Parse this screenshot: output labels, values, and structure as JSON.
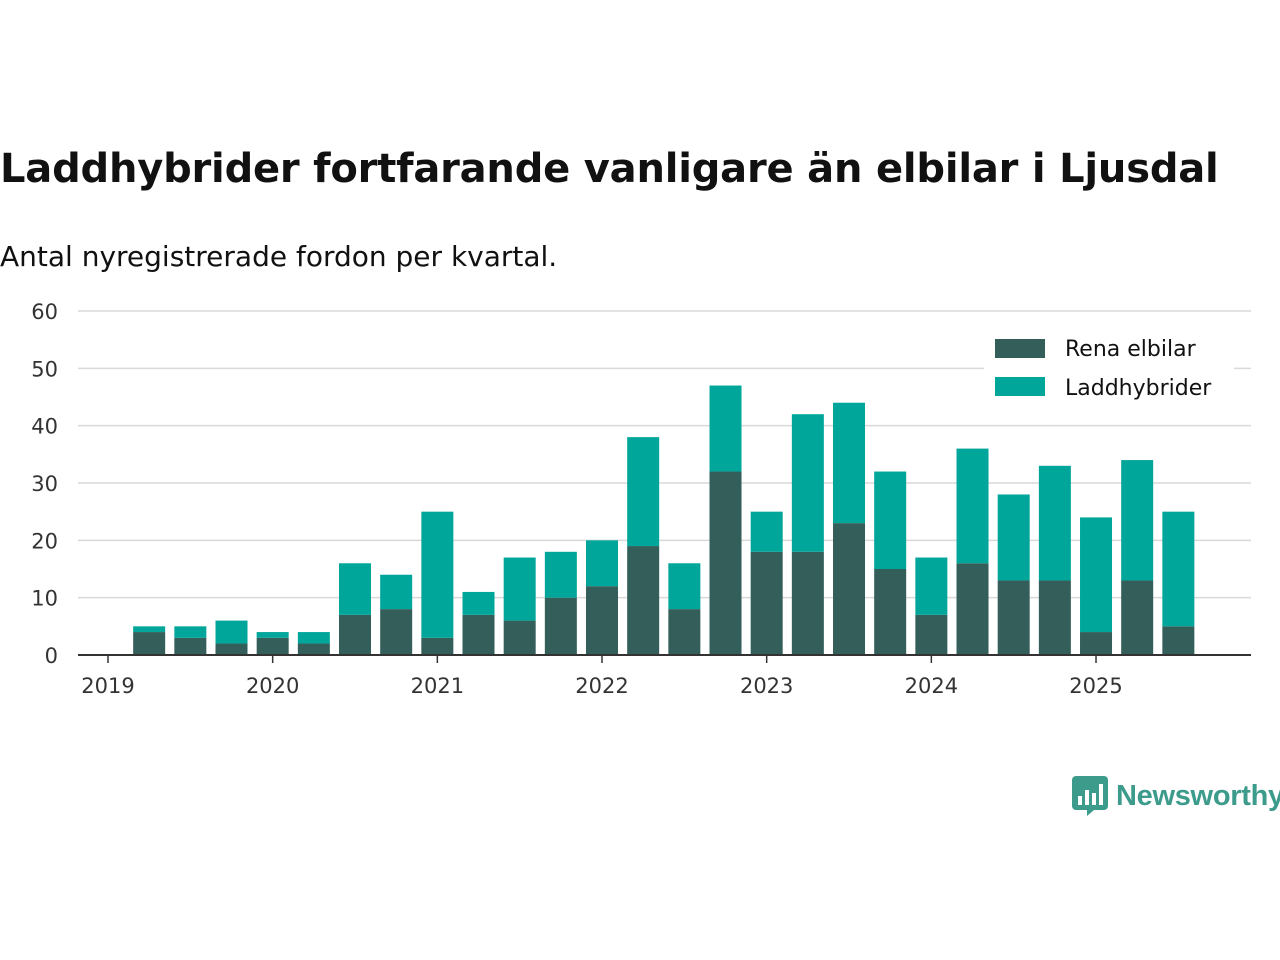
{
  "header": {
    "title": "Laddhybrider fortfarande vanligare än elbilar i Ljusdal",
    "subtitle": "Antal nyregistrerade fordon per kvartal."
  },
  "brand": {
    "name": "Newsworthy",
    "icon": "bar-chart-speech-bubble-icon",
    "color": "#3d9b8c"
  },
  "chart_data": {
    "type": "bar",
    "stacked": true,
    "title": "Laddhybrider fortfarande vanligare än elbilar i Ljusdal",
    "subtitle": "Antal nyregistrerade fordon per kvartal.",
    "xlabel": "",
    "ylabel": "",
    "ylim": [
      0,
      60
    ],
    "yticks": [
      0,
      10,
      20,
      30,
      40,
      50,
      60
    ],
    "grid": true,
    "legend_position": "top-right",
    "x_tick_labels": [
      "2019",
      "2020",
      "2021",
      "2022",
      "2023",
      "2024",
      "2025"
    ],
    "categories": [
      "2019 Q2",
      "2019 Q3",
      "2019 Q4",
      "2020 Q1",
      "2020 Q2",
      "2020 Q3",
      "2020 Q4",
      "2021 Q1",
      "2021 Q2",
      "2021 Q3",
      "2021 Q4",
      "2022 Q1",
      "2022 Q2",
      "2022 Q3",
      "2022 Q4",
      "2023 Q1",
      "2023 Q2",
      "2023 Q3",
      "2023 Q4",
      "2024 Q1",
      "2024 Q2",
      "2024 Q3",
      "2024 Q4",
      "2025 Q1",
      "2025 Q2",
      "2025 Q3"
    ],
    "series": [
      {
        "name": "Rena elbilar",
        "color": "#335e59",
        "values": [
          4,
          3,
          2,
          3,
          2,
          7,
          8,
          3,
          7,
          6,
          10,
          12,
          19,
          8,
          32,
          18,
          18,
          23,
          15,
          7,
          16,
          13,
          13,
          4,
          13,
          5
        ]
      },
      {
        "name": "Laddhybrider",
        "color": "#00a69a",
        "values": [
          1,
          2,
          4,
          1,
          2,
          9,
          6,
          22,
          4,
          11,
          8,
          8,
          19,
          8,
          15,
          7,
          24,
          21,
          17,
          10,
          20,
          15,
          20,
          20,
          21,
          20
        ]
      }
    ]
  }
}
